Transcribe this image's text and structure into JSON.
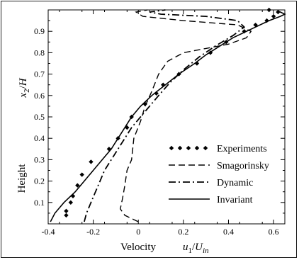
{
  "chart_data": {
    "type": "line",
    "x_axis": {
      "label_word": "Velocity",
      "label_var": "u",
      "label_var_sub": "1",
      "label_sep": "/",
      "label_den": "U",
      "label_den_sub": "in",
      "xlim": [
        -0.4,
        0.65
      ],
      "ticks": [
        -0.4,
        -0.2,
        0,
        0.2,
        0.4,
        0.6
      ],
      "tick_labels": [
        "-0.4",
        "-0.2",
        "0",
        "0.2",
        "0.4",
        "0.6"
      ]
    },
    "y_axis": {
      "label_word": "Height",
      "label_var": "x",
      "label_var_sub": "2",
      "label_sep": "/",
      "label_den": "H",
      "ylim": [
        0.0,
        1.0
      ],
      "ticks": [
        0.1,
        0.2,
        0.3,
        0.4,
        0.5,
        0.6,
        0.7,
        0.8,
        0.9
      ],
      "tick_labels": [
        "0.1",
        "0.2",
        "0.3",
        "0.4",
        "0.5",
        "0.6",
        "0.7",
        "0.8",
        "0.9"
      ]
    },
    "grid": false,
    "legend_position": "lower-right",
    "series": [
      {
        "name": "Experiments",
        "style": "diamond-markers",
        "points": [
          [
            -0.32,
            0.04
          ],
          [
            -0.32,
            0.06
          ],
          [
            -0.3,
            0.1
          ],
          [
            -0.29,
            0.13
          ],
          [
            -0.27,
            0.18
          ],
          [
            -0.25,
            0.23
          ],
          [
            -0.21,
            0.29
          ],
          [
            -0.13,
            0.35
          ],
          [
            -0.09,
            0.4
          ],
          [
            -0.05,
            0.45
          ],
          [
            -0.03,
            0.5
          ],
          [
            0.03,
            0.56
          ],
          [
            0.08,
            0.61
          ],
          [
            0.11,
            0.65
          ],
          [
            0.18,
            0.7
          ],
          [
            0.26,
            0.75
          ],
          [
            0.32,
            0.8
          ],
          [
            0.39,
            0.85
          ],
          [
            0.47,
            0.9
          ],
          [
            0.52,
            0.93
          ],
          [
            0.57,
            0.95
          ],
          [
            0.6,
            0.97
          ],
          [
            0.62,
            0.99
          ],
          [
            0.58,
            1.0
          ]
        ]
      },
      {
        "name": "Smagorinsky",
        "style": "dashed",
        "points": [
          [
            0.0,
            0.01
          ],
          [
            -0.06,
            0.04
          ],
          [
            -0.08,
            0.07
          ],
          [
            -0.07,
            0.12
          ],
          [
            -0.06,
            0.18
          ],
          [
            -0.05,
            0.25
          ],
          [
            -0.03,
            0.3
          ],
          [
            -0.02,
            0.4
          ],
          [
            0.01,
            0.48
          ],
          [
            0.03,
            0.55
          ],
          [
            0.06,
            0.62
          ],
          [
            0.09,
            0.7
          ],
          [
            0.13,
            0.76
          ],
          [
            0.2,
            0.8
          ],
          [
            0.3,
            0.82
          ],
          [
            0.4,
            0.84
          ],
          [
            0.48,
            0.87
          ],
          [
            0.5,
            0.9
          ],
          [
            0.44,
            0.93
          ],
          [
            0.2,
            0.95
          ],
          [
            0.02,
            0.97
          ],
          [
            -0.01,
            0.99
          ],
          [
            0.04,
            1.0
          ]
        ]
      },
      {
        "name": "Dynamic",
        "style": "dash-dot",
        "points": [
          [
            -0.24,
            0.01
          ],
          [
            -0.23,
            0.05
          ],
          [
            -0.21,
            0.1
          ],
          [
            -0.19,
            0.15
          ],
          [
            -0.17,
            0.2
          ],
          [
            -0.15,
            0.25
          ],
          [
            -0.12,
            0.3
          ],
          [
            -0.09,
            0.35
          ],
          [
            -0.06,
            0.4
          ],
          [
            -0.03,
            0.45
          ],
          [
            0.01,
            0.5
          ],
          [
            0.05,
            0.55
          ],
          [
            0.09,
            0.6
          ],
          [
            0.14,
            0.66
          ],
          [
            0.2,
            0.72
          ],
          [
            0.27,
            0.78
          ],
          [
            0.34,
            0.83
          ],
          [
            0.42,
            0.88
          ],
          [
            0.47,
            0.92
          ],
          [
            0.44,
            0.95
          ],
          [
            0.3,
            0.97
          ],
          [
            0.1,
            0.98
          ],
          [
            0.05,
            0.99
          ],
          [
            0.12,
            1.0
          ]
        ]
      },
      {
        "name": "Invariant",
        "style": "solid",
        "points": [
          [
            -0.39,
            0.01
          ],
          [
            -0.37,
            0.05
          ],
          [
            -0.33,
            0.1
          ],
          [
            -0.28,
            0.15
          ],
          [
            -0.24,
            0.2
          ],
          [
            -0.2,
            0.25
          ],
          [
            -0.16,
            0.3
          ],
          [
            -0.12,
            0.35
          ],
          [
            -0.09,
            0.4
          ],
          [
            -0.06,
            0.45
          ],
          [
            -0.03,
            0.5
          ],
          [
            0.01,
            0.55
          ],
          [
            0.06,
            0.6
          ],
          [
            0.12,
            0.65
          ],
          [
            0.18,
            0.7
          ],
          [
            0.25,
            0.75
          ],
          [
            0.3,
            0.79
          ],
          [
            0.36,
            0.83
          ],
          [
            0.42,
            0.87
          ],
          [
            0.5,
            0.91
          ],
          [
            0.58,
            0.95
          ],
          [
            0.63,
            0.97
          ],
          [
            0.65,
            0.98
          ],
          [
            0.62,
            0.995
          ]
        ]
      }
    ]
  }
}
